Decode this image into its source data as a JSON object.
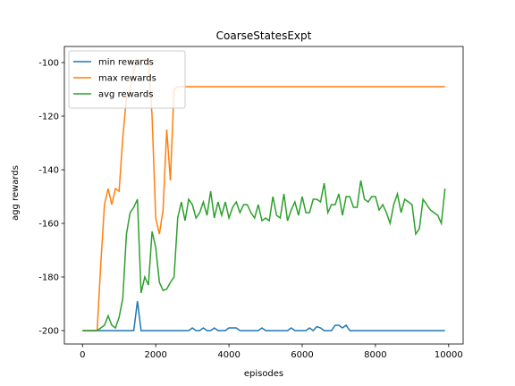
{
  "chart_data": {
    "type": "line",
    "title": "CoarseStatesExpt",
    "x_label": "episodes",
    "y_label": "agg rewards",
    "x": [
      0,
      100,
      200,
      300,
      400,
      500,
      600,
      700,
      800,
      900,
      1000,
      1100,
      1200,
      1300,
      1400,
      1500,
      1600,
      1700,
      1800,
      1900,
      2000,
      2100,
      2200,
      2300,
      2400,
      2500,
      2600,
      2700,
      2800,
      2900,
      3000,
      3100,
      3200,
      3300,
      3400,
      3500,
      3600,
      3700,
      3800,
      3900,
      4000,
      4100,
      4200,
      4300,
      4400,
      4500,
      4600,
      4700,
      4800,
      4900,
      5000,
      5100,
      5200,
      5300,
      5400,
      5500,
      5600,
      5700,
      5800,
      5900,
      6000,
      6100,
      6200,
      6300,
      6400,
      6500,
      6600,
      6700,
      6800,
      6900,
      7000,
      7100,
      7200,
      7300,
      7400,
      7500,
      7600,
      7700,
      7800,
      7900,
      8000,
      8100,
      8200,
      8300,
      8400,
      8500,
      8600,
      8700,
      8800,
      8900,
      9000,
      9100,
      9200,
      9300,
      9400,
      9500,
      9600,
      9700,
      9800,
      9900
    ],
    "series": [
      {
        "name": "min rewards",
        "color": "#1f77b4",
        "values": [
          -200,
          -200,
          -200,
          -200,
          -200,
          -200,
          -200,
          -200,
          -200,
          -200,
          -200,
          -200,
          -200,
          -200,
          -200,
          -189,
          -200,
          -200,
          -200,
          -200,
          -200,
          -200,
          -200,
          -200,
          -200,
          -200,
          -200,
          -200,
          -200,
          -200,
          -199,
          -200,
          -200,
          -199,
          -200,
          -200,
          -199,
          -200,
          -200,
          -200,
          -199,
          -199,
          -199,
          -200,
          -200,
          -200,
          -200,
          -200,
          -200,
          -199,
          -200,
          -200,
          -200,
          -200,
          -200,
          -200,
          -200,
          -199,
          -200,
          -200,
          -200,
          -200,
          -199,
          -200,
          -198.5,
          -199,
          -200,
          -200,
          -200,
          -198,
          -198,
          -199,
          -198,
          -200,
          -200,
          -200,
          -200,
          -200,
          -200,
          -200,
          -200,
          -200,
          -200,
          -200,
          -200,
          -200,
          -200,
          -200,
          -200,
          -200,
          -200,
          -200,
          -200,
          -200,
          -200,
          -200,
          -200,
          -200,
          -200,
          -200
        ]
      },
      {
        "name": "max rewards",
        "color": "#ff7f0e",
        "values": [
          -200,
          -200,
          -200,
          -200,
          -200,
          -175,
          -153,
          -147,
          -153,
          -147,
          -148,
          -128,
          -113,
          -110,
          -103,
          -99,
          -99,
          -99,
          -99,
          -120,
          -158,
          -164,
          -155,
          -125,
          -144,
          -110,
          -109,
          -109,
          -109,
          -109,
          -109,
          -109,
          -109,
          -109,
          -109,
          -109,
          -109,
          -109,
          -109,
          -109,
          -109,
          -109,
          -109,
          -109,
          -109,
          -109,
          -109,
          -109,
          -109,
          -109,
          -109,
          -109,
          -109,
          -109,
          -109,
          -109,
          -109,
          -109,
          -109,
          -109,
          -109,
          -109,
          -109,
          -109,
          -109,
          -109,
          -109,
          -109,
          -109,
          -109,
          -109,
          -109,
          -109,
          -109,
          -109,
          -109,
          -109,
          -109,
          -109,
          -109,
          -109,
          -109,
          -109,
          -109,
          -109,
          -109,
          -109,
          -109,
          -109,
          -109,
          -109,
          -109,
          -109,
          -109,
          -109,
          -109,
          -109,
          -109,
          -109,
          -109
        ]
      },
      {
        "name": "avg rewards",
        "color": "#2ca02c",
        "values": [
          -200,
          -200,
          -200,
          -200,
          -200,
          -199,
          -198,
          -194.5,
          -198,
          -199,
          -195,
          -188,
          -164,
          -156,
          -154,
          -151,
          -186,
          -180,
          -183,
          -163,
          -169,
          -182,
          -185,
          -184.5,
          -182,
          -180,
          -158,
          -152,
          -159,
          -151,
          -153,
          -158,
          -156,
          -152,
          -157,
          -148,
          -158,
          -152,
          -157,
          -152,
          -158,
          -154,
          -152,
          -156,
          -153,
          -153,
          -156,
          -158,
          -153,
          -159,
          -158,
          -159,
          -150,
          -157,
          -158,
          -149,
          -159,
          -155,
          -152,
          -157,
          -150,
          -156,
          -156,
          -151,
          -151,
          -152,
          -145,
          -156,
          -153,
          -153,
          -149,
          -157,
          -150,
          -150,
          -154,
          -154,
          -144,
          -151,
          -152,
          -150,
          -150,
          -155,
          -153,
          -156,
          -160,
          -153,
          -149,
          -156,
          -151,
          -152,
          -153,
          -164,
          -162,
          -151,
          -153,
          -155,
          -156,
          -157,
          -160,
          -147
        ]
      }
    ],
    "xlim": [
      -495,
      10395
    ],
    "ylim": [
      -205,
      -94
    ],
    "xticks": [
      0,
      2000,
      4000,
      6000,
      8000,
      10000
    ],
    "yticks": [
      -200,
      -180,
      -160,
      -140,
      -120,
      -100
    ],
    "legend": "upper left"
  }
}
